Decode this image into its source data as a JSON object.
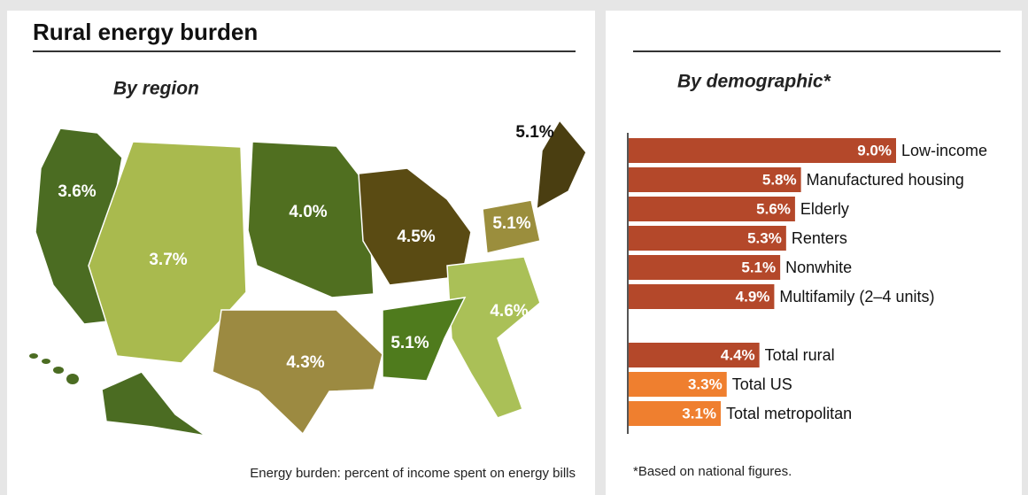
{
  "header": {
    "title": "Rural energy burden"
  },
  "map": {
    "title": "By region",
    "regions": [
      {
        "value": 3.6,
        "label": "3.6%",
        "color": "#4b6c22"
      },
      {
        "value": 3.7,
        "label": "3.7%",
        "color": "#a9ba4e"
      },
      {
        "value": 4.0,
        "label": "4.0%",
        "color": "#506f20"
      },
      {
        "value": 4.5,
        "label": "4.5%",
        "color": "#5a4b13"
      },
      {
        "value": 5.1,
        "label": "5.1%",
        "color": "#4a3e11"
      },
      {
        "value": 5.1,
        "label": "5.1%",
        "color": "#9b8e3d"
      },
      {
        "value": 4.6,
        "label": "4.6%",
        "color": "#aac057"
      },
      {
        "value": 5.1,
        "label": "5.1%",
        "color": "#4f7b1d"
      },
      {
        "value": 4.3,
        "label": "4.3%",
        "color": "#9c8a41"
      }
    ],
    "note": "Energy burden: percent of income spent on energy bills"
  },
  "chart_data": {
    "type": "bar",
    "orientation": "horizontal",
    "title": "By demographic*",
    "categories": [
      "Low-income",
      "Manufactured housing",
      "Elderly",
      "Renters",
      "Nonwhite",
      "Multifamily (2–4 units)",
      null,
      "Total rural",
      "Total US",
      "Total metropolitan"
    ],
    "values": [
      9.0,
      5.8,
      5.6,
      5.3,
      5.1,
      4.9,
      null,
      4.4,
      3.3,
      3.1
    ],
    "value_labels": [
      "9.0%",
      "5.8%",
      "5.6%",
      "5.3%",
      "5.1%",
      "4.9%",
      null,
      "4.4%",
      "3.3%",
      "3.1%"
    ],
    "colors": [
      "#b4482a",
      "#b4482a",
      "#b4482a",
      "#b4482a",
      "#b4482a",
      "#b4482a",
      null,
      "#b4482a",
      "#ef7f2f",
      "#ef7f2f"
    ],
    "note": "*Based on national figures."
  }
}
